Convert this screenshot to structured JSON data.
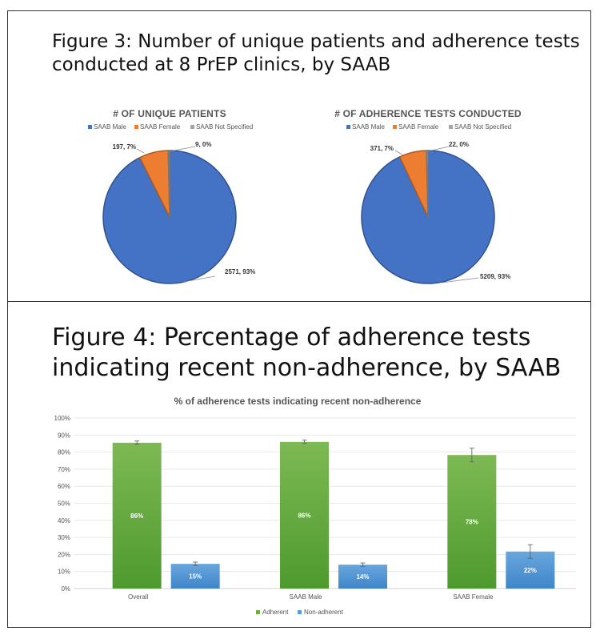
{
  "figure3": {
    "title_lead": "Figure 3",
    "title_rest": ": Number of unique patients and adherence tests conducted at 8 PrEP clinics, by SAAB"
  },
  "figure4": {
    "title_lead": "Figure 4",
    "title_rest": ": Percentage of adherence tests indicating recent non-adherence, by SAAB"
  },
  "chart_data": [
    {
      "type": "pie",
      "title": "# OF UNIQUE PATIENTS",
      "legend_position": "top",
      "labels": [
        "SAAB Male",
        "SAAB Female",
        "SAAB Not Specified"
      ],
      "values": [
        2571,
        197,
        9
      ],
      "data_labels": [
        "2571, 93%",
        "197, 7%",
        "9, 0%"
      ],
      "colors": [
        "#4472C4",
        "#ED7D31",
        "#A5A5A5"
      ]
    },
    {
      "type": "pie",
      "title": "# OF ADHERENCE TESTS CONDUCTED",
      "legend_position": "top",
      "labels": [
        "SAAB Male",
        "SAAB Female",
        "SAAB Not Specified"
      ],
      "values": [
        5209,
        371,
        22
      ],
      "data_labels": [
        "5209, 93%",
        "371, 7%",
        "22, 0%"
      ],
      "colors": [
        "#4472C4",
        "#ED7D31",
        "#A5A5A5"
      ]
    },
    {
      "type": "bar",
      "title": "% of adherence tests indicating recent non-adherence",
      "categories": [
        "Overall",
        "SAAB Male",
        "SAAB Female"
      ],
      "series": [
        {
          "name": "Adherent",
          "values": [
            85.5,
            86,
            78.3
          ],
          "labels": [
            "86%",
            "86%",
            "78%"
          ],
          "errors": [
            1,
            1,
            4
          ],
          "color": "#70AD47"
        },
        {
          "name": "Non-adherent",
          "values": [
            14.5,
            14,
            21.7
          ],
          "labels": [
            "15%",
            "14%",
            "22%"
          ],
          "errors": [
            1,
            1,
            4
          ],
          "color": "#5B9BD5"
        }
      ],
      "ylim": [
        0,
        100
      ],
      "yticks": [
        "0%",
        "10%",
        "20%",
        "30%",
        "40%",
        "50%",
        "60%",
        "70%",
        "80%",
        "90%",
        "100%"
      ],
      "grid": true,
      "legend_position": "bottom"
    }
  ]
}
